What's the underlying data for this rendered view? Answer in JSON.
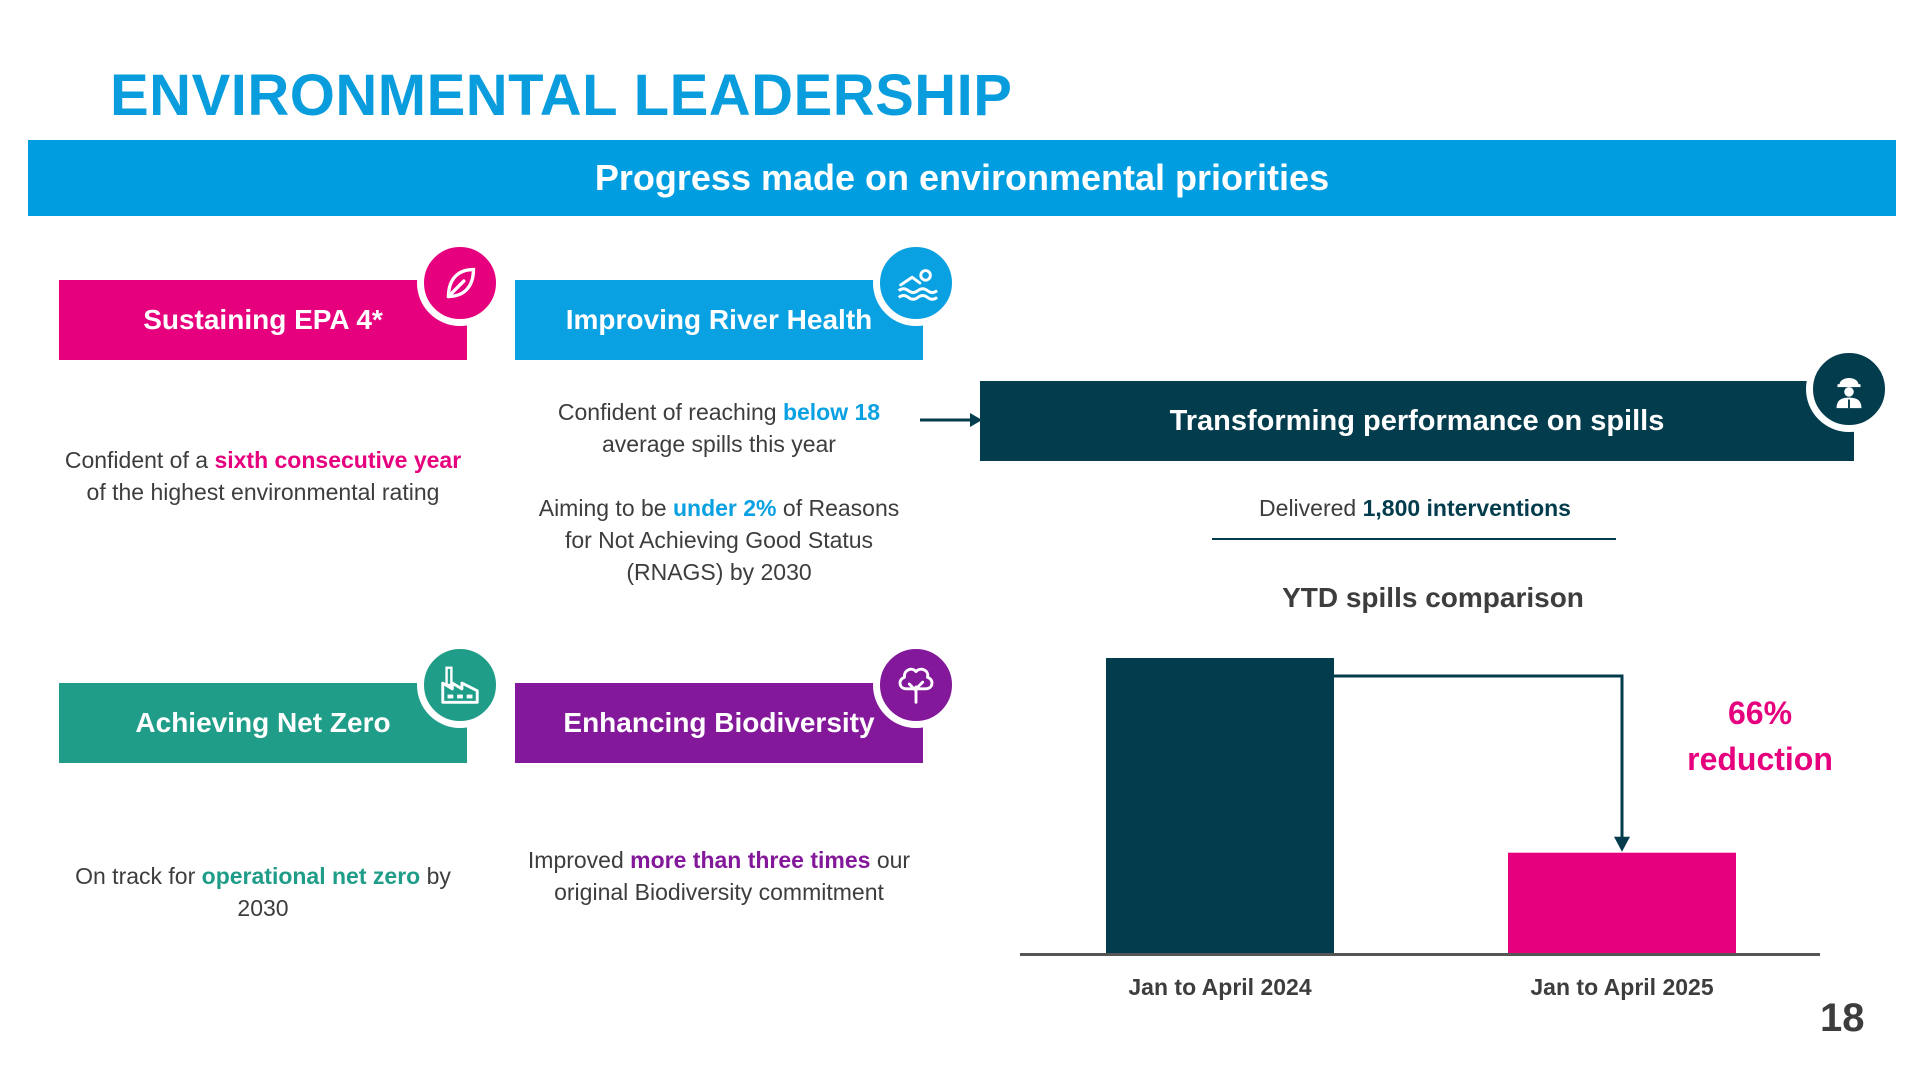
{
  "title": "ENVIRONMENTAL LEADERSHIP",
  "banner": "Progress made on environmental priorities",
  "cards": {
    "epa": {
      "label": "Sustaining EPA 4*",
      "icon": "leaf-icon",
      "text_pre": "Confident of a ",
      "text_highlight": "sixth consecutive year",
      "text_post": " of the highest environmental rating"
    },
    "river": {
      "label": "Improving River Health",
      "icon": "swimmer-icon",
      "text1_pre": "Confident of reaching ",
      "text1_highlight": "below 18",
      "text1_post": " average spills this year",
      "text2_pre": "Aiming to be ",
      "text2_highlight": "under 2%",
      "text2_post": " of Reasons for Not Achieving Good Status (RNAGS) by 2030"
    },
    "netzero": {
      "label": "Achieving Net Zero",
      "icon": "factory-icon",
      "text_pre": "On track for ",
      "text_highlight": "operational net zero",
      "text_post": " by 2030"
    },
    "bio": {
      "label": "Enhancing Biodiversity",
      "icon": "tree-icon",
      "text_pre": "Improved ",
      "text_highlight": "more than three times",
      "text_post": " our original Biodiversity commitment"
    },
    "spills": {
      "label": "Transforming performance on spills",
      "icon": "worker-icon",
      "text_pre": "Delivered ",
      "text_highlight": "1,800 interventions"
    }
  },
  "colors": {
    "pink": "#e6007e",
    "blue": "#0aa1e2",
    "teal": "#1f9d88",
    "purple": "#84189a",
    "navy": "#033c4d"
  },
  "chart_data": {
    "type": "bar",
    "title": "YTD spills comparison",
    "categories": [
      "Jan to April 2024",
      "Jan to April 2025"
    ],
    "values": [
      100,
      34
    ],
    "unit": "relative",
    "colors": [
      "#033c4d",
      "#e6007e"
    ],
    "annotation": "66% reduction",
    "ylim": [
      0,
      100
    ]
  },
  "page_number": "18"
}
